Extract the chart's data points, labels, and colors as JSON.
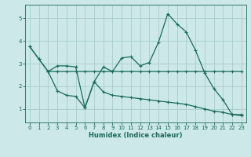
{
  "xlabel": "Humidex (Indice chaleur)",
  "bg_color": "#cce8e8",
  "grid_color": "#aacccc",
  "line_color": "#1a6b5a",
  "xlim": [
    -0.5,
    23.5
  ],
  "ylim": [
    0.4,
    5.6
  ],
  "yticks": [
    1,
    2,
    3,
    4,
    5
  ],
  "xticks": [
    0,
    1,
    2,
    3,
    4,
    5,
    6,
    7,
    8,
    9,
    10,
    11,
    12,
    13,
    14,
    15,
    16,
    17,
    18,
    19,
    20,
    21,
    22,
    23
  ],
  "line1_x": [
    0,
    1,
    2,
    3,
    4,
    5,
    6,
    7,
    8,
    9,
    10,
    11,
    12,
    13,
    14,
    15,
    16,
    17,
    18,
    19,
    20,
    21,
    22,
    23
  ],
  "line1_y": [
    3.75,
    3.2,
    2.65,
    2.65,
    2.65,
    2.65,
    2.65,
    2.65,
    2.65,
    2.65,
    2.65,
    2.65,
    2.65,
    2.65,
    2.65,
    2.65,
    2.65,
    2.65,
    2.65,
    2.65,
    2.65,
    2.65,
    2.65,
    2.65
  ],
  "line2_x": [
    0,
    1,
    2,
    3,
    4,
    5,
    6,
    7,
    8,
    9,
    10,
    11,
    12,
    13,
    14,
    15,
    16,
    17,
    18,
    19,
    20,
    21,
    22,
    23
  ],
  "line2_y": [
    3.75,
    3.2,
    2.65,
    2.9,
    2.9,
    2.85,
    1.05,
    2.2,
    2.85,
    2.65,
    3.25,
    3.3,
    2.9,
    3.05,
    3.95,
    5.2,
    4.75,
    4.4,
    3.6,
    2.6,
    1.9,
    1.4,
    0.75,
    0.75
  ],
  "line3_x": [
    2,
    3,
    4,
    5,
    6,
    7,
    8,
    9,
    10,
    11,
    12,
    13,
    14,
    15,
    16,
    17,
    18,
    19,
    20,
    21,
    22,
    23
  ],
  "line3_y": [
    2.65,
    1.8,
    1.6,
    1.55,
    1.05,
    2.2,
    1.75,
    1.6,
    1.55,
    1.5,
    1.45,
    1.4,
    1.35,
    1.3,
    1.25,
    1.2,
    1.1,
    1.0,
    0.9,
    0.85,
    0.75,
    0.7
  ]
}
